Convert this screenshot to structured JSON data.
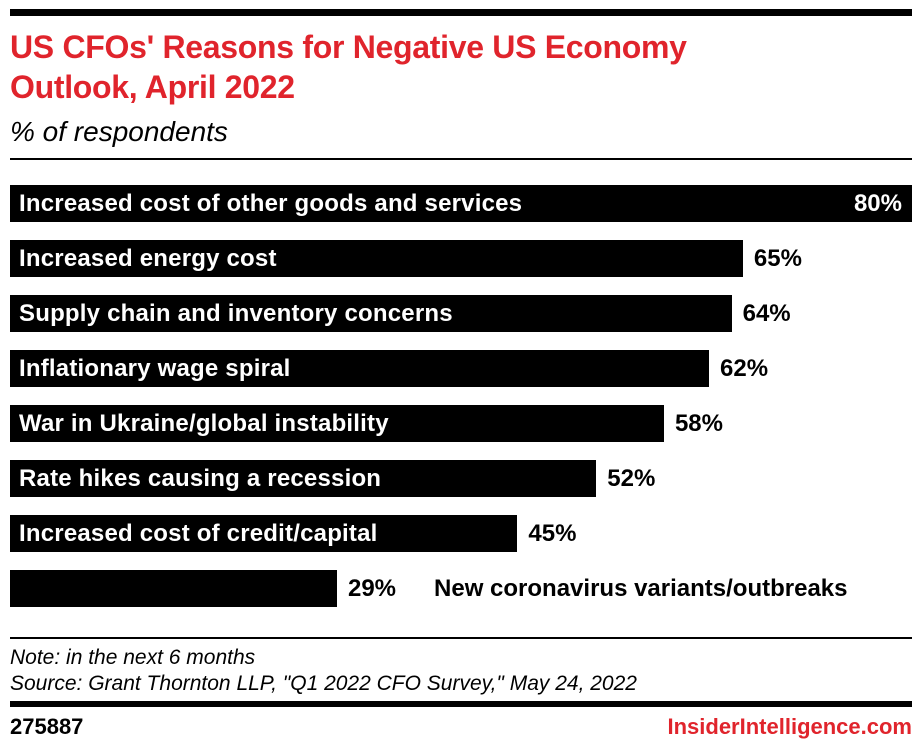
{
  "brand": {
    "accent_red": "#e0242c",
    "bar_color": "#000000",
    "footer_id": "275887",
    "footer_site": "InsiderIntelligence.com"
  },
  "header": {
    "title": "US CFOs' Reasons for Negative US Economy Outlook, April 2022",
    "title_lines": [
      "US CFOs' Reasons for Negative US Economy",
      "Outlook, April 2022"
    ],
    "subtitle": "% of respondents"
  },
  "chart_data": {
    "type": "bar",
    "orientation": "horizontal",
    "title": "US CFOs' Reasons for Negative US Economy Outlook, April 2022",
    "subtitle": "% of respondents",
    "unit": "%",
    "scale_max": 80,
    "grid": false,
    "legend": false,
    "bar_color": "#000000",
    "categories": [
      "Increased cost of other goods and services",
      "Increased energy cost",
      "Supply chain and inventory concerns",
      "Inflationary wage spiral",
      "War in Ukraine/global instability",
      "Rate hikes causing a recession",
      "Increased cost of credit/capital",
      "New coronavirus variants/outbreaks"
    ],
    "values": [
      80,
      65,
      64,
      62,
      58,
      52,
      45,
      29
    ],
    "rows": [
      {
        "label": "Increased cost of other goods and services",
        "value": 80,
        "value_label": "80%",
        "value_placement": "inside-bar",
        "label_placement": "inside-bar"
      },
      {
        "label": "Increased energy cost",
        "value": 65,
        "value_label": "65%",
        "value_placement": "right-of-bar",
        "label_placement": "inside-bar"
      },
      {
        "label": "Supply chain and inventory concerns",
        "value": 64,
        "value_label": "64%",
        "value_placement": "right-of-bar",
        "label_placement": "inside-bar"
      },
      {
        "label": "Inflationary wage spiral",
        "value": 62,
        "value_label": "62%",
        "value_placement": "right-of-bar",
        "label_placement": "inside-bar"
      },
      {
        "label": "War in Ukraine/global instability",
        "value": 58,
        "value_label": "58%",
        "value_placement": "right-of-bar",
        "label_placement": "inside-bar"
      },
      {
        "label": "Rate hikes causing a recession",
        "value": 52,
        "value_label": "52%",
        "value_placement": "right-of-bar",
        "label_placement": "inside-bar"
      },
      {
        "label": "Increased cost of credit/capital",
        "value": 45,
        "value_label": "45%",
        "value_placement": "right-of-bar",
        "label_placement": "inside-bar"
      },
      {
        "label": "New coronavirus variants/outbreaks",
        "value": 29,
        "value_label": "29%",
        "value_placement": "right-of-bar",
        "label_placement": "right-of-value"
      }
    ]
  },
  "footer": {
    "note": "Note: in the next 6 months",
    "source": "Source: Grant Thornton LLP, \"Q1 2022 CFO Survey,\" May 24, 2022"
  }
}
